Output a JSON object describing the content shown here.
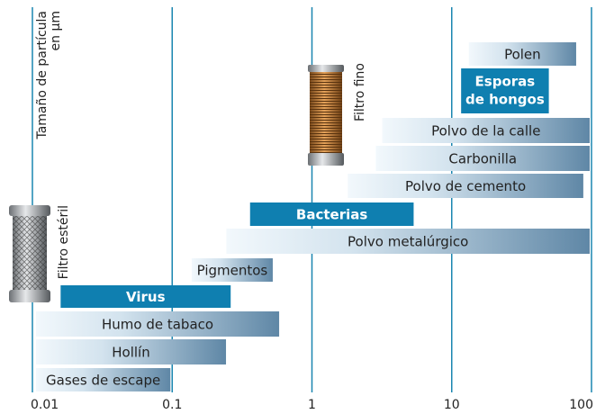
{
  "chart_data": {
    "type": "range-bar",
    "axis_label": [
      "Tamaño de partícula",
      "en µm"
    ],
    "annotations": [
      "Filtro estéril",
      "Filtro fino"
    ],
    "xscale": "log",
    "xlim": [
      0.01,
      100
    ],
    "xticks": [
      0.01,
      0.1,
      1,
      10,
      100
    ],
    "grid": true,
    "grid_color": "#1a86b0",
    "highlight_color": "#0f7fb0",
    "bar_color": "#5f87a6",
    "bars": [
      {
        "label": "Polen",
        "range": [
          12.5,
          80
        ],
        "highlight": false
      },
      {
        "label": [
          "Esporas",
          "de hongos"
        ],
        "range": [
          11,
          51
        ],
        "highlight": true
      },
      {
        "label": "Polvo de la calle",
        "range": [
          3,
          100
        ],
        "highlight": false
      },
      {
        "label": "Carbonilla",
        "range": [
          2.7,
          100
        ],
        "highlight": false
      },
      {
        "label": "Polvo de cemento",
        "range": [
          1.7,
          90
        ],
        "highlight": false
      },
      {
        "label": "Bacterias",
        "range": [
          0.34,
          5.5
        ],
        "highlight": true
      },
      {
        "label": "Polvo metalúrgico",
        "range": [
          0.23,
          100
        ],
        "highlight": false
      },
      {
        "label": "Pigmentos",
        "range": [
          0.13,
          0.54
        ],
        "highlight": false
      },
      {
        "label": "Virus",
        "range": [
          0.015,
          0.27
        ],
        "highlight": true
      },
      {
        "label": "Humo de tabaco",
        "range": [
          0.01,
          0.6
        ],
        "highlight": false
      },
      {
        "label": "Hollín",
        "range": [
          0.01,
          0.25
        ],
        "highlight": false
      },
      {
        "label": "Gases de escape",
        "range": [
          0.01,
          0.1
        ],
        "highlight": false
      }
    ]
  }
}
